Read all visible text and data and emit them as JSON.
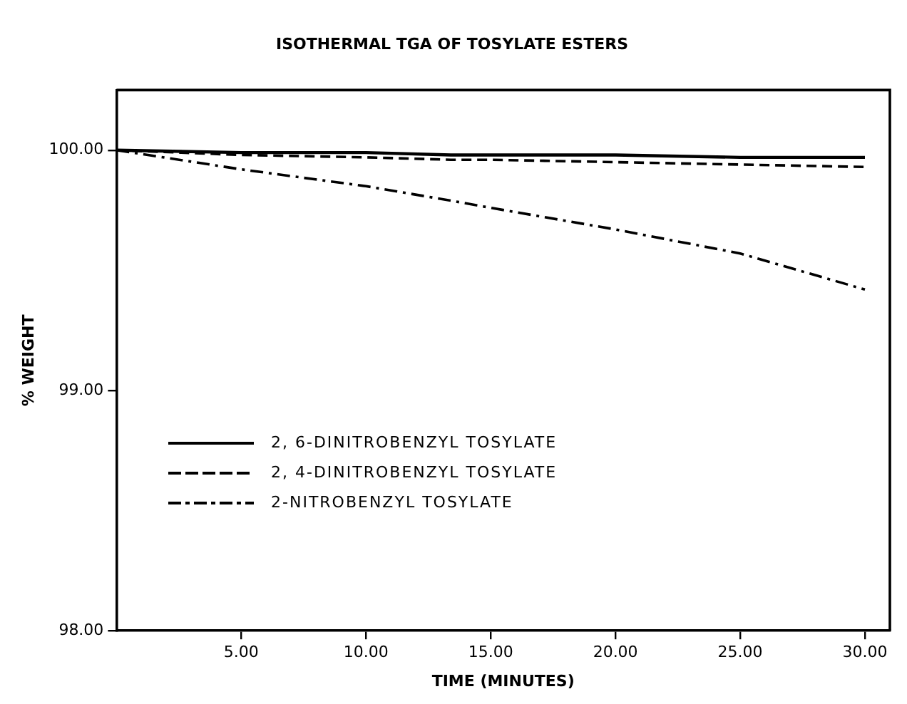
{
  "chart_data": {
    "type": "line",
    "title": "ISOTHERMAL TGA OF TOSYLATE ESTERS",
    "xlabel": "TIME (MINUTES)",
    "ylabel": "% WEIGHT",
    "x": [
      0,
      5,
      10,
      13.4,
      15,
      20,
      25,
      30
    ],
    "series": [
      {
        "name": "2, 6-DINITROBENZYL TOSYLATE",
        "color": "#000000",
        "line_style": "solid",
        "values": [
          100,
          99.99,
          99.99,
          99.98,
          99.98,
          99.98,
          99.97,
          99.97
        ]
      },
      {
        "name": "2, 4-DINITROBENZYL TOSYLATE",
        "color": "#000000",
        "line_style": "dashed",
        "values": [
          100,
          99.98,
          99.97,
          99.96,
          99.96,
          99.95,
          99.94,
          99.93
        ]
      },
      {
        "name": "2-NITROBENZYL TOSYLATE",
        "color": "#000000",
        "line_style": "dashdot",
        "values": [
          100,
          99.92,
          99.85,
          99.79,
          99.76,
          99.67,
          99.57,
          99.42
        ]
      }
    ],
    "xlim": [
      0,
      31
    ],
    "ylim": [
      98,
      100.25
    ],
    "xticks": [
      {
        "value": 5,
        "label": "5.00"
      },
      {
        "value": 10,
        "label": "10.00"
      },
      {
        "value": 15,
        "label": "15.00"
      },
      {
        "value": 20,
        "label": "20.00"
      },
      {
        "value": 25,
        "label": "25.00"
      },
      {
        "value": 30,
        "label": "30.00"
      }
    ],
    "yticks": [
      {
        "value": 98,
        "label": "98.00"
      },
      {
        "value": 99,
        "label": "99.00"
      },
      {
        "value": 100,
        "label": "100.00"
      }
    ],
    "grid": false,
    "legend": "left",
    "marker": "none"
  }
}
